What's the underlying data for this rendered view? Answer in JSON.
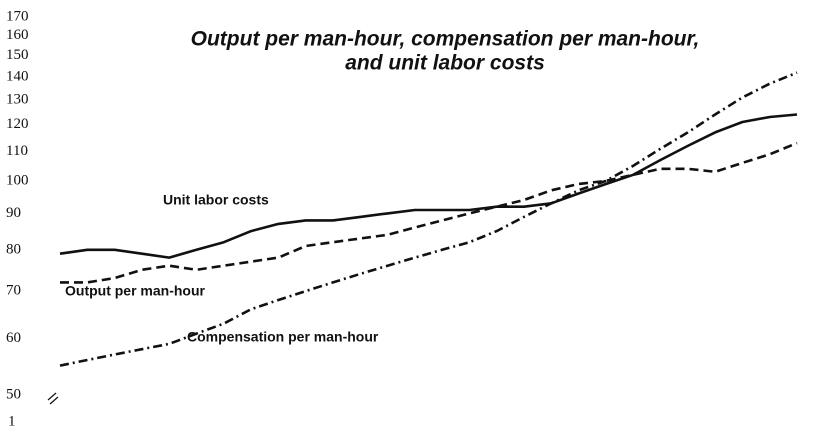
{
  "chart_data": {
    "type": "line",
    "title": [
      "Output per man-hour, compensation per man-hour,",
      "and unit labor costs"
    ],
    "categories": [
      null,
      null,
      null,
      null,
      null,
      null,
      null,
      null,
      null,
      null,
      null,
      null,
      null,
      null,
      null,
      null,
      null,
      null,
      null,
      null,
      null,
      null,
      null,
      null,
      null,
      null,
      null,
      null
    ],
    "series": [
      {
        "name": "Unit labor costs",
        "color": "#111111",
        "dash": "solid",
        "values": [
          79,
          80,
          80,
          79,
          78,
          80,
          82,
          85,
          87,
          88,
          88,
          89,
          90,
          91,
          91,
          91,
          92,
          92,
          93,
          96,
          99,
          102,
          107,
          112,
          117,
          121,
          123,
          124
        ]
      },
      {
        "name": "Output per man-hour",
        "color": "#111111",
        "dash": "dashed",
        "values": [
          72,
          72,
          73,
          75,
          76,
          75,
          76,
          77,
          78,
          81,
          82,
          83,
          84,
          86,
          88,
          90,
          92,
          94,
          97,
          99,
          100,
          102,
          104,
          104,
          103,
          106,
          109,
          113
        ]
      },
      {
        "name": "Compensation per man-hour",
        "color": "#111111",
        "dash": "dashdot",
        "values": [
          55,
          56,
          57,
          58,
          59,
          61,
          63,
          66,
          68,
          70,
          72,
          74,
          76,
          78,
          80,
          82,
          85,
          89,
          93,
          97,
          100,
          105,
          111,
          117,
          124,
          131,
          137,
          142
        ]
      }
    ],
    "ylim": [
      50,
      170
    ],
    "log_y": true,
    "yticks": [
      170,
      160,
      150,
      140,
      130,
      120,
      110,
      100,
      90,
      80,
      70,
      60,
      50
    ],
    "axis_break_label": "1",
    "grid": false
  }
}
